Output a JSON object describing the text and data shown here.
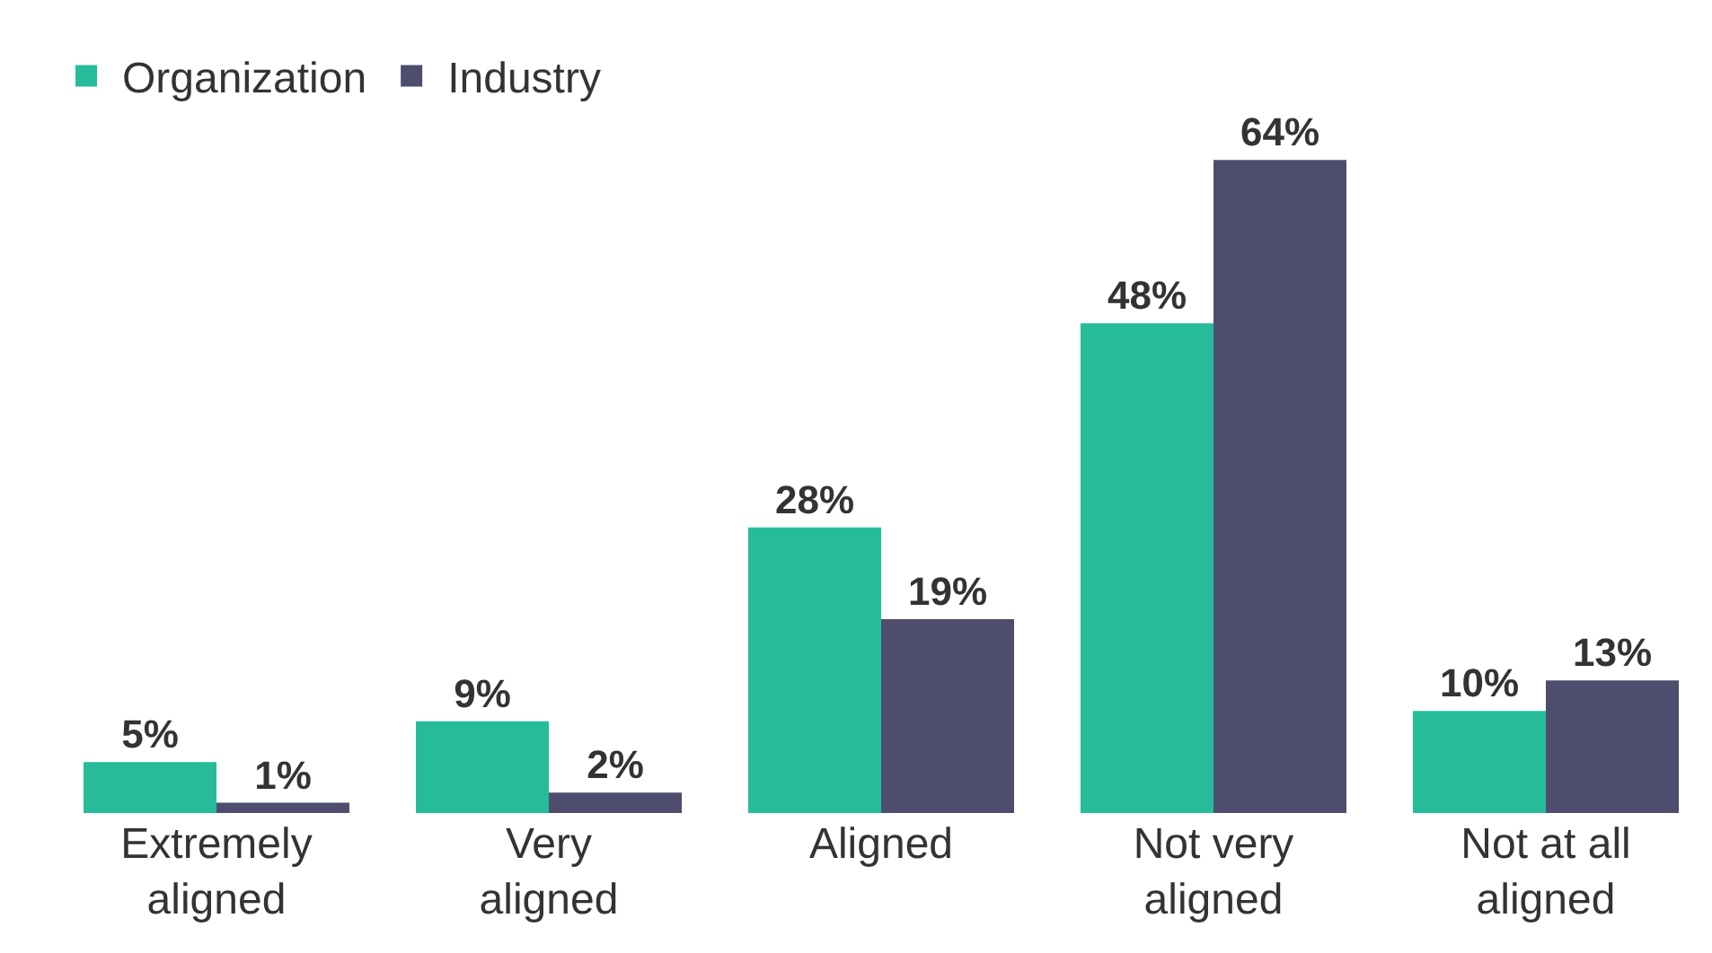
{
  "chart_data": {
    "type": "bar",
    "categories": [
      "Extremely aligned",
      "Very aligned",
      "Aligned",
      "Not very aligned",
      "Not at all aligned"
    ],
    "series": [
      {
        "name": "Organization",
        "color": "#26bc9a",
        "values": [
          5,
          9,
          28,
          48,
          10
        ],
        "value_labels": [
          "5%",
          "9%",
          "28%",
          "48%",
          "10%"
        ]
      },
      {
        "name": "Industry",
        "color": "#4f4d6e",
        "values": [
          1,
          2,
          19,
          64,
          13
        ],
        "value_labels": [
          "1%",
          "2%",
          "19%",
          "64%",
          "13%"
        ]
      }
    ],
    "legend": "top left"
  }
}
